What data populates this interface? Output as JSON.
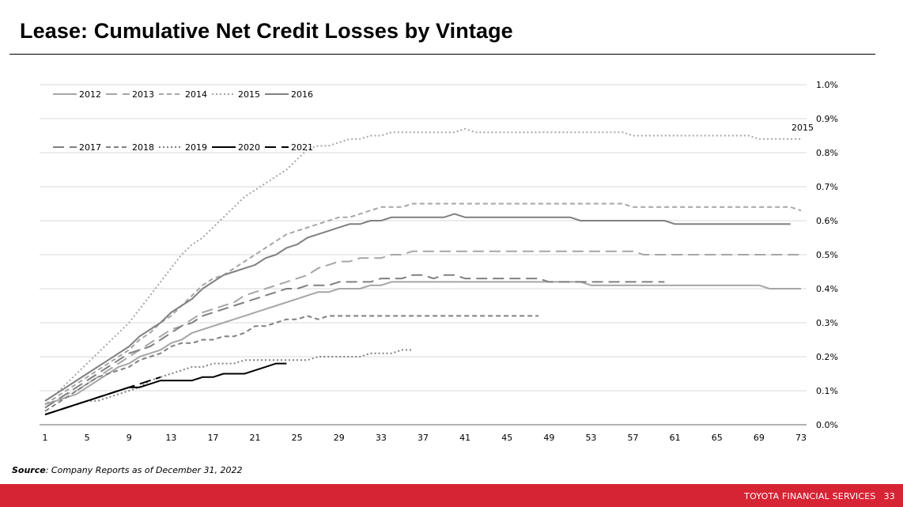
{
  "slide": {
    "title": "Lease: Cumulative Net Credit Losses by Vintage",
    "source_label": "Source",
    "source_text": ": Company Reports as of December 31, 2022",
    "footer_brand": "TOYOTA FINANCIAL SERVICES",
    "page_number": "33"
  },
  "chart_data": {
    "type": "line",
    "title": "Lease: Cumulative Net Credit Losses by Vintage",
    "xlabel": "",
    "ylabel": "",
    "x_ticks": [
      "1",
      "5",
      "9",
      "13",
      "17",
      "21",
      "25",
      "29",
      "33",
      "37",
      "41",
      "45",
      "49",
      "53",
      "57",
      "61",
      "65",
      "69",
      "73"
    ],
    "y_ticks": [
      "0.0%",
      "0.1%",
      "0.2%",
      "0.3%",
      "0.4%",
      "0.5%",
      "0.6%",
      "0.7%",
      "0.8%",
      "0.9%",
      "1.0%"
    ],
    "xlim": [
      1,
      73
    ],
    "ylim": [
      0,
      1.0
    ],
    "grid": true,
    "legend": "top-left",
    "annotation": "2015",
    "series": [
      {
        "name": "2012",
        "color": "#a6a6a6",
        "dash": "solid",
        "width": 2,
        "values": [
          0.06,
          0.07,
          0.08,
          0.09,
          0.11,
          0.13,
          0.15,
          0.17,
          0.18,
          0.2,
          0.21,
          0.22,
          0.24,
          0.25,
          0.27,
          0.28,
          0.29,
          0.3,
          0.31,
          0.32,
          0.33,
          0.34,
          0.35,
          0.36,
          0.37,
          0.38,
          0.39,
          0.39,
          0.4,
          0.4,
          0.4,
          0.41,
          0.41,
          0.42,
          0.42,
          0.42,
          0.42,
          0.42,
          0.42,
          0.42,
          0.42,
          0.42,
          0.42,
          0.42,
          0.42,
          0.42,
          0.42,
          0.42,
          0.42,
          0.42,
          0.42,
          0.42,
          0.41,
          0.41,
          0.41,
          0.41,
          0.41,
          0.41,
          0.41,
          0.41,
          0.41,
          0.41,
          0.41,
          0.41,
          0.41,
          0.41,
          0.41,
          0.41,
          0.41,
          0.4,
          0.4,
          0.4,
          0.4
        ]
      },
      {
        "name": "2013",
        "color": "#a6a6a6",
        "dash": "longdash",
        "width": 2,
        "values": [
          0.06,
          0.07,
          0.09,
          0.1,
          0.12,
          0.14,
          0.16,
          0.18,
          0.2,
          0.22,
          0.24,
          0.26,
          0.28,
          0.29,
          0.31,
          0.33,
          0.34,
          0.35,
          0.36,
          0.38,
          0.39,
          0.4,
          0.41,
          0.42,
          0.43,
          0.44,
          0.46,
          0.47,
          0.48,
          0.48,
          0.49,
          0.49,
          0.49,
          0.5,
          0.5,
          0.51,
          0.51,
          0.51,
          0.51,
          0.51,
          0.51,
          0.51,
          0.51,
          0.51,
          0.51,
          0.51,
          0.51,
          0.51,
          0.51,
          0.51,
          0.51,
          0.51,
          0.51,
          0.51,
          0.51,
          0.51,
          0.51,
          0.5,
          0.5,
          0.5,
          0.5,
          0.5,
          0.5,
          0.5,
          0.5,
          0.5,
          0.5,
          0.5,
          0.5,
          0.5,
          0.5,
          0.5,
          0.5
        ]
      },
      {
        "name": "2014",
        "color": "#a6a6a6",
        "dash": "dash",
        "width": 2,
        "values": [
          0.06,
          0.08,
          0.1,
          0.12,
          0.14,
          0.16,
          0.18,
          0.2,
          0.22,
          0.25,
          0.27,
          0.3,
          0.32,
          0.35,
          0.38,
          0.41,
          0.43,
          0.44,
          0.46,
          0.48,
          0.5,
          0.52,
          0.54,
          0.56,
          0.57,
          0.58,
          0.59,
          0.6,
          0.61,
          0.61,
          0.62,
          0.63,
          0.64,
          0.64,
          0.64,
          0.65,
          0.65,
          0.65,
          0.65,
          0.65,
          0.65,
          0.65,
          0.65,
          0.65,
          0.65,
          0.65,
          0.65,
          0.65,
          0.65,
          0.65,
          0.65,
          0.65,
          0.65,
          0.65,
          0.65,
          0.65,
          0.64,
          0.64,
          0.64,
          0.64,
          0.64,
          0.64,
          0.64,
          0.64,
          0.64,
          0.64,
          0.64,
          0.64,
          0.64,
          0.64,
          0.64,
          0.64,
          0.63
        ]
      },
      {
        "name": "2015",
        "color": "#a6a6a6",
        "dash": "dot",
        "width": 2,
        "values": [
          0.07,
          0.09,
          0.12,
          0.15,
          0.18,
          0.21,
          0.24,
          0.27,
          0.3,
          0.34,
          0.38,
          0.42,
          0.46,
          0.5,
          0.53,
          0.55,
          0.58,
          0.61,
          0.64,
          0.67,
          0.69,
          0.71,
          0.73,
          0.75,
          0.78,
          0.81,
          0.82,
          0.82,
          0.83,
          0.84,
          0.84,
          0.85,
          0.85,
          0.86,
          0.86,
          0.86,
          0.86,
          0.86,
          0.86,
          0.86,
          0.87,
          0.86,
          0.86,
          0.86,
          0.86,
          0.86,
          0.86,
          0.86,
          0.86,
          0.86,
          0.86,
          0.86,
          0.86,
          0.86,
          0.86,
          0.86,
          0.85,
          0.85,
          0.85,
          0.85,
          0.85,
          0.85,
          0.85,
          0.85,
          0.85,
          0.85,
          0.85,
          0.85,
          0.84,
          0.84,
          0.84,
          0.84,
          0.84
        ]
      },
      {
        "name": "2016",
        "color": "#808080",
        "dash": "solid",
        "width": 2,
        "values": [
          0.07,
          0.09,
          0.11,
          0.13,
          0.15,
          0.17,
          0.19,
          0.21,
          0.23,
          0.26,
          0.28,
          0.3,
          0.33,
          0.35,
          0.37,
          0.4,
          0.42,
          0.44,
          0.45,
          0.46,
          0.47,
          0.49,
          0.5,
          0.52,
          0.53,
          0.55,
          0.56,
          0.57,
          0.58,
          0.59,
          0.59,
          0.6,
          0.6,
          0.61,
          0.61,
          0.61,
          0.61,
          0.61,
          0.61,
          0.62,
          0.61,
          0.61,
          0.61,
          0.61,
          0.61,
          0.61,
          0.61,
          0.61,
          0.61,
          0.61,
          0.61,
          0.6,
          0.6,
          0.6,
          0.6,
          0.6,
          0.6,
          0.6,
          0.6,
          0.6,
          0.59,
          0.59,
          0.59,
          0.59,
          0.59,
          0.59,
          0.59,
          0.59,
          0.59,
          0.59,
          0.59,
          0.59
        ]
      },
      {
        "name": "2017",
        "color": "#808080",
        "dash": "longdash",
        "width": 2,
        "values": [
          0.05,
          0.07,
          0.09,
          0.11,
          0.13,
          0.15,
          0.17,
          0.19,
          0.21,
          0.22,
          0.23,
          0.25,
          0.27,
          0.29,
          0.3,
          0.32,
          0.33,
          0.34,
          0.35,
          0.36,
          0.37,
          0.38,
          0.39,
          0.4,
          0.4,
          0.41,
          0.41,
          0.41,
          0.42,
          0.42,
          0.42,
          0.42,
          0.43,
          0.43,
          0.43,
          0.44,
          0.44,
          0.43,
          0.44,
          0.44,
          0.43,
          0.43,
          0.43,
          0.43,
          0.43,
          0.43,
          0.43,
          0.43,
          0.42,
          0.42,
          0.42,
          0.42,
          0.42,
          0.42,
          0.42,
          0.42,
          0.42,
          0.42,
          0.42,
          0.42
        ]
      },
      {
        "name": "2018",
        "color": "#808080",
        "dash": "dash",
        "width": 2,
        "values": [
          0.04,
          0.06,
          0.08,
          0.1,
          0.12,
          0.14,
          0.15,
          0.16,
          0.17,
          0.19,
          0.2,
          0.21,
          0.23,
          0.24,
          0.24,
          0.25,
          0.25,
          0.26,
          0.26,
          0.27,
          0.29,
          0.29,
          0.3,
          0.31,
          0.31,
          0.32,
          0.31,
          0.32,
          0.32,
          0.32,
          0.32,
          0.32,
          0.32,
          0.32,
          0.32,
          0.32,
          0.32,
          0.32,
          0.32,
          0.32,
          0.32,
          0.32,
          0.32,
          0.32,
          0.32,
          0.32,
          0.32,
          0.32
        ]
      },
      {
        "name": "2019",
        "color": "#808080",
        "dash": "dot",
        "width": 2,
        "values": [
          0.03,
          0.04,
          0.05,
          0.06,
          0.07,
          0.07,
          0.08,
          0.09,
          0.1,
          0.11,
          0.13,
          0.14,
          0.15,
          0.16,
          0.17,
          0.17,
          0.18,
          0.18,
          0.18,
          0.19,
          0.19,
          0.19,
          0.19,
          0.19,
          0.19,
          0.19,
          0.2,
          0.2,
          0.2,
          0.2,
          0.2,
          0.21,
          0.21,
          0.21,
          0.22,
          0.22
        ]
      },
      {
        "name": "2020",
        "color": "#000000",
        "dash": "solid",
        "width": 2,
        "values": [
          0.03,
          0.04,
          0.05,
          0.06,
          0.07,
          0.08,
          0.09,
          0.1,
          0.11,
          0.11,
          0.12,
          0.13,
          0.13,
          0.13,
          0.13,
          0.14,
          0.14,
          0.15,
          0.15,
          0.15,
          0.16,
          0.17,
          0.18,
          0.18
        ]
      },
      {
        "name": "2021",
        "color": "#000000",
        "dash": "longdash",
        "width": 2,
        "values": [
          0.03,
          0.04,
          0.05,
          0.06,
          0.07,
          0.08,
          0.09,
          0.1,
          0.11,
          0.12,
          0.13,
          0.14
        ]
      }
    ]
  }
}
